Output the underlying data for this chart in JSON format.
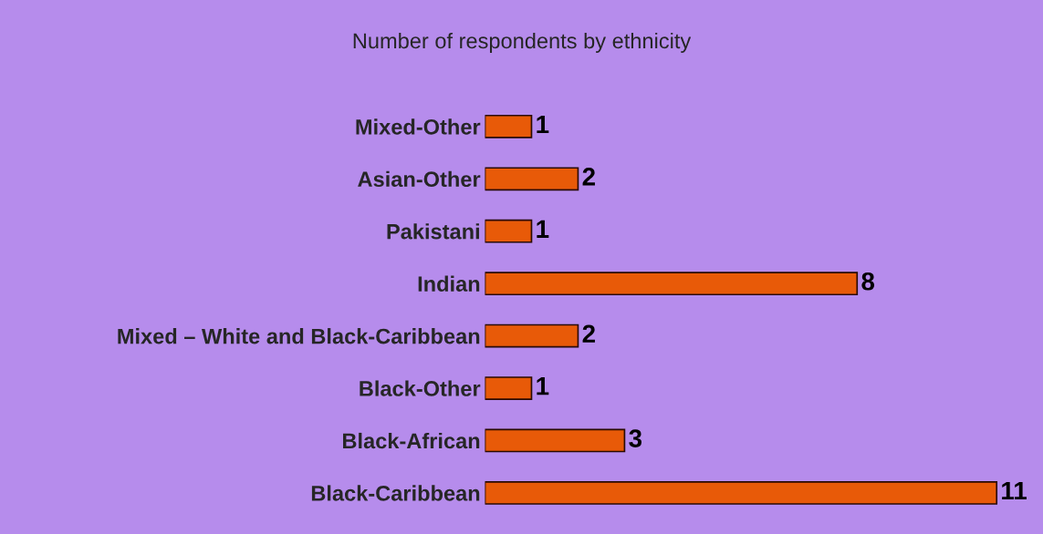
{
  "chart_data": {
    "type": "bar",
    "orientation": "horizontal",
    "title": "Number of respondents by ethnicity",
    "categories": [
      "Mixed-Other",
      "Asian-Other",
      "Pakistani",
      "Indian",
      "Mixed – White and Black-Caribbean",
      "Black-Other",
      "Black-African",
      "Black-Caribbean"
    ],
    "values": [
      1,
      2,
      1,
      8,
      2,
      1,
      3,
      11
    ],
    "color": "#e85a08",
    "data_labels": true,
    "grid": false,
    "legend": false,
    "tick_labels": "y"
  }
}
